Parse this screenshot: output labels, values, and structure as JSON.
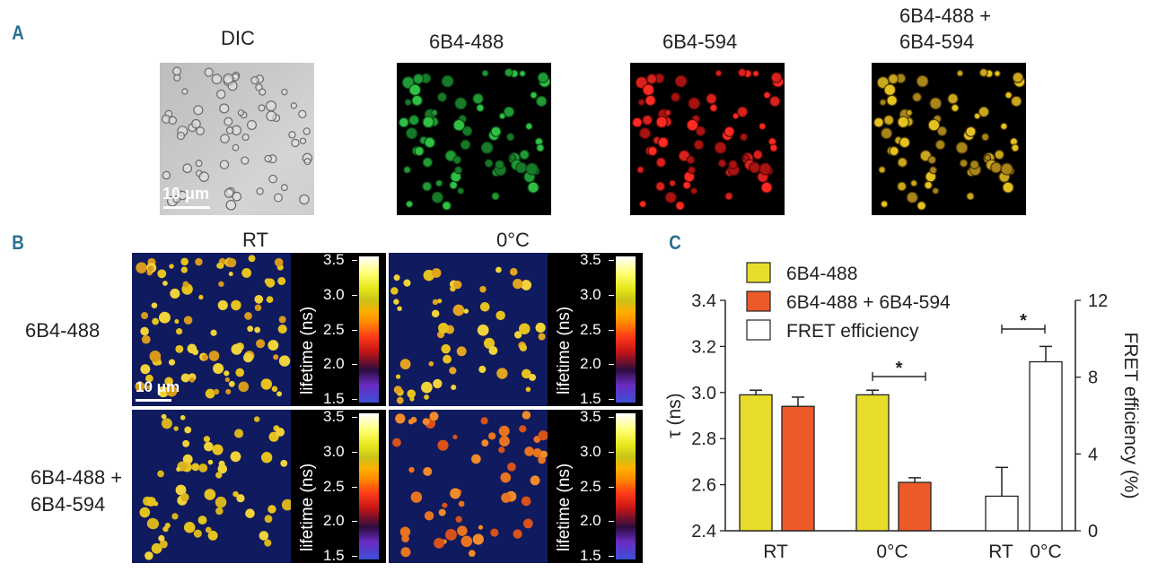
{
  "panel_a": {
    "letter": "A",
    "titles": [
      "DIC",
      "6B4-488",
      "6B4-594",
      "6B4-488 +",
      "6B4-594"
    ],
    "scale_label": "10 μm"
  },
  "panel_b": {
    "letter": "B",
    "col_titles": [
      "RT",
      "0°C"
    ],
    "row_labels": [
      "6B4-488",
      "6B4-488 +",
      "6B4-594"
    ],
    "scale_label": "10 μm",
    "colorbar_title": "lifetime (ns)",
    "colorbar_ticks": [
      "3.5",
      "3.0",
      "2.5",
      "2.0",
      "1.5"
    ]
  },
  "colors": {
    "panel_letter": "#2a6f8f",
    "yellow_bar": "#e8dc2a",
    "orange_bar": "#ec5a2a",
    "flim_background": "#101a5e"
  },
  "chart_data": {
    "letter": "C",
    "type": "bar",
    "categories": [
      "RT",
      "0°C",
      "RT",
      "0°C"
    ],
    "legend": [
      "6B4-488",
      "6B4-488 + 6B4-594",
      "FRET efficiency"
    ],
    "left_axis": {
      "label": "τ (ns)",
      "range": [
        2.4,
        3.4
      ],
      "ticks": [
        "2.4",
        "2.6",
        "2.8",
        "3.0",
        "3.2",
        "3.4"
      ]
    },
    "right_axis": {
      "label": "FRET efficiency (%)",
      "range": [
        0,
        12
      ],
      "ticks": [
        "0",
        "4",
        "8",
        "12"
      ]
    },
    "series": [
      {
        "name": "6B4-488",
        "axis": "left",
        "values": [
          {
            "category": "RT",
            "value": 2.99,
            "error": 0.02
          },
          {
            "category": "0°C",
            "value": 2.99,
            "error": 0.02
          }
        ]
      },
      {
        "name": "6B4-488 + 6B4-594",
        "axis": "left",
        "values": [
          {
            "category": "RT",
            "value": 2.94,
            "error": 0.04
          },
          {
            "category": "0°C",
            "value": 2.61,
            "error": 0.02
          }
        ]
      },
      {
        "name": "FRET efficiency",
        "axis": "right",
        "values": [
          {
            "category": "RT",
            "value": 1.8,
            "error": 1.5
          },
          {
            "category": "0°C",
            "value": 8.8,
            "error": 0.8
          }
        ]
      }
    ],
    "significance": [
      "*",
      "*"
    ]
  }
}
